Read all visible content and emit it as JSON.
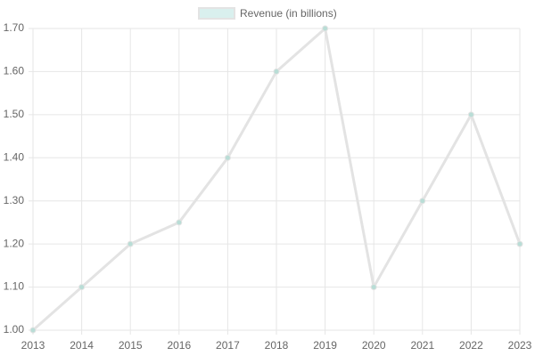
{
  "chart_data": {
    "type": "line",
    "categories": [
      "2013",
      "2014",
      "2015",
      "2016",
      "2017",
      "2018",
      "2019",
      "2020",
      "2021",
      "2022",
      "2023"
    ],
    "series": [
      {
        "name": "Revenue (in billions)",
        "color": "#e3e3e3",
        "point_color": "#b9ddd6",
        "fill_color": "#d9f0ee",
        "values": [
          1.0,
          1.1,
          1.2,
          1.25,
          1.4,
          1.6,
          1.7,
          1.1,
          1.3,
          1.5,
          1.2
        ]
      }
    ],
    "ylim": [
      1.0,
      1.7
    ],
    "yticks": [
      {
        "value": 1.0,
        "label": "1.00"
      },
      {
        "value": 1.1,
        "label": "1.10"
      },
      {
        "value": 1.2,
        "label": "1.20"
      },
      {
        "value": 1.3,
        "label": "1.30"
      },
      {
        "value": 1.4,
        "label": "1.40"
      },
      {
        "value": 1.5,
        "label": "1.50"
      },
      {
        "value": 1.6,
        "label": "1.60"
      },
      {
        "value": 1.7,
        "label": "1.70"
      }
    ],
    "grid": true,
    "legend": "top"
  }
}
